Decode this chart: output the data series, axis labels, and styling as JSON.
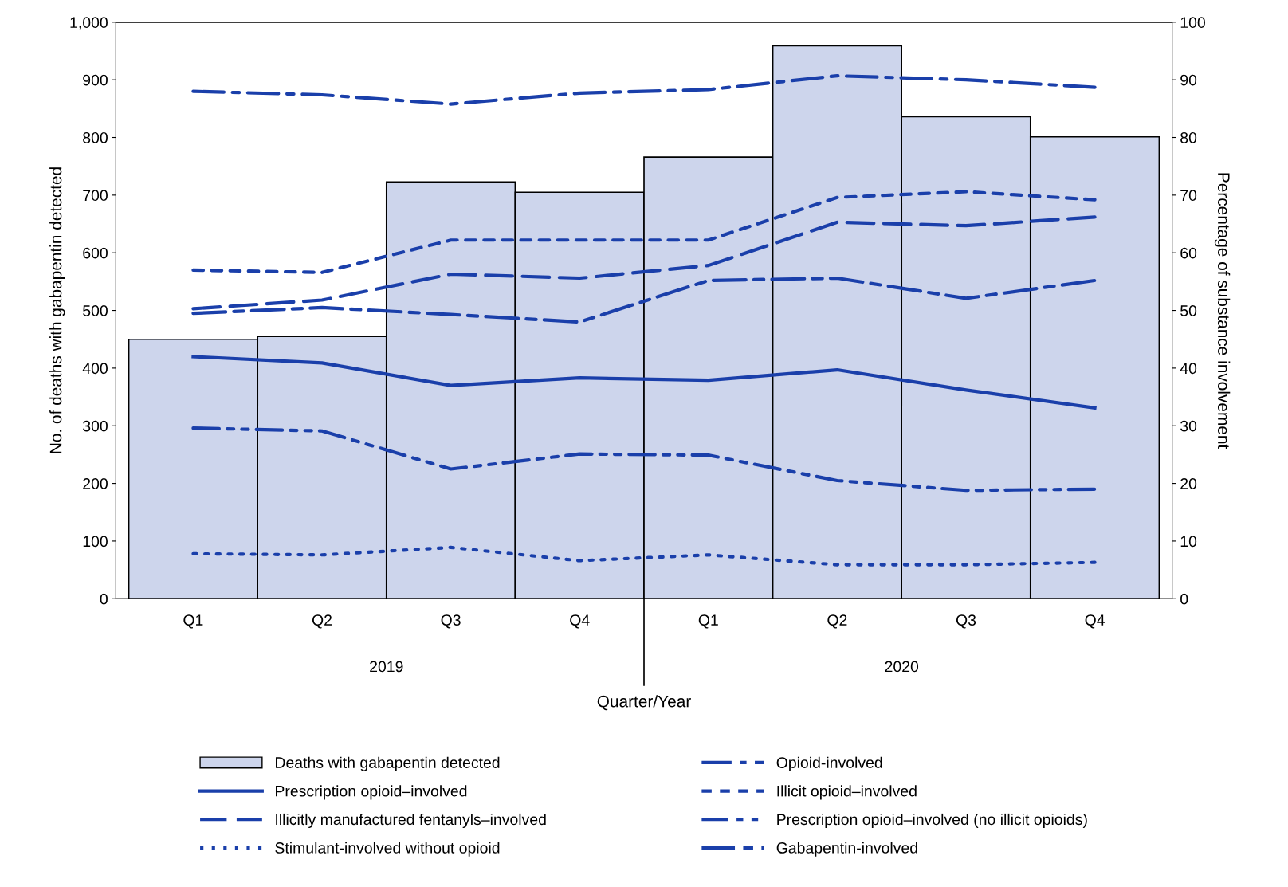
{
  "chart_data": {
    "type": "bar",
    "xlabel": "Quarter/Year",
    "ylabel": "No. of deaths with gabapentin detected",
    "y2label": "Percentage of substance involvement",
    "categories": [
      "Q1",
      "Q2",
      "Q3",
      "Q4",
      "Q1",
      "Q2",
      "Q3",
      "Q4"
    ],
    "annotations": [
      "2019",
      "2020"
    ],
    "ylim": [
      0,
      1000
    ],
    "yticks": [
      0,
      100,
      200,
      300,
      400,
      500,
      600,
      700,
      800,
      900,
      {
        "value": 1000,
        "label": "1,000"
      }
    ],
    "y2lim": [
      0,
      100
    ],
    "y2ticks": [
      0,
      10,
      20,
      30,
      40,
      50,
      60,
      70,
      80,
      90,
      100
    ],
    "legend": "bottom",
    "grid": false,
    "series": [
      {
        "name": "Deaths with gabapentin detected",
        "color": "#cdd5ec",
        "values": [
          450,
          455,
          723,
          705,
          766,
          959,
          836,
          801
        ]
      },
      {
        "name": "Prescription opioid–involved",
        "type": "line",
        "axis": "y2",
        "line_style": "solid",
        "color": "#1a3faa",
        "values": [
          42.0,
          40.9,
          37.0,
          38.3,
          37.9,
          39.7,
          36.2,
          33.1
        ]
      },
      {
        "name": "Illicitly manufactured fentanyls–involved",
        "type": "line",
        "axis": "y2",
        "line_style": "longdash",
        "color": "#1a3faa",
        "values": [
          50.3,
          51.8,
          56.3,
          55.6,
          57.8,
          65.3,
          64.7,
          66.2
        ]
      },
      {
        "name": "Stimulant-involved without opioid",
        "type": "line",
        "axis": "y2",
        "line_style": "dotted",
        "color": "#1a3faa",
        "values": [
          7.8,
          7.6,
          8.9,
          6.6,
          7.6,
          5.9,
          5.9,
          6.3
        ]
      },
      {
        "name": "Opioid-involved",
        "type": "line",
        "axis": "y2",
        "line_style": "dashdot",
        "color": "#1a3faa",
        "values": [
          88.0,
          87.4,
          85.8,
          87.7,
          88.3,
          90.7,
          90.0,
          88.7
        ]
      },
      {
        "name": "Illicit opioid–involved",
        "type": "line",
        "axis": "y2",
        "line_style": "dashed",
        "color": "#1a3faa",
        "values": [
          57.0,
          56.6,
          62.2,
          62.2,
          62.2,
          69.6,
          70.6,
          69.2
        ]
      },
      {
        "name": "Prescription opioid–involved (no illicit opioids)",
        "type": "line",
        "axis": "y2",
        "line_style": "dashdotdot",
        "color": "#1a3faa",
        "values": [
          29.6,
          29.1,
          22.5,
          25.1,
          24.9,
          20.5,
          18.8,
          19.0
        ]
      },
      {
        "name": "Gabapentin-involved",
        "type": "line",
        "axis": "y2",
        "line_style": "longdashdot",
        "color": "#1a3faa",
        "values": [
          49.5,
          50.5,
          49.3,
          48.0,
          55.2,
          55.6,
          52.1,
          55.2
        ]
      }
    ]
  }
}
